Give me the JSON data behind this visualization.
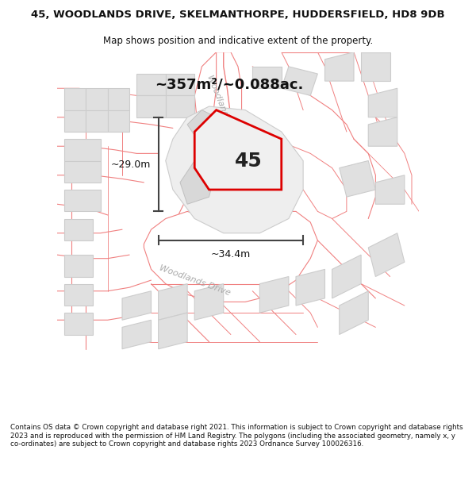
{
  "title": "45, WOODLANDS DRIVE, SKELMANTHORPE, HUDDERSFIELD, HD8 9DB",
  "subtitle": "Map shows position and indicative extent of the property.",
  "footer": "Contains OS data © Crown copyright and database right 2021. This information is subject to Crown copyright and database rights 2023 and is reproduced with the permission of HM Land Registry. The polygons (including the associated geometry, namely x, y co-ordinates) are subject to Crown copyright and database rights 2023 Ordnance Survey 100026316.",
  "area_label": "~357m²/~0.088ac.",
  "width_label": "~34.4m",
  "height_label": "~29.0m",
  "property_number": "45",
  "map_bg": "#ffffff",
  "road_line_color": "#f08080",
  "building_color": "#e0e0e0",
  "building_edge_color": "#cccccc",
  "plot_color": "#e8e8e8",
  "highlight_color": "#dd0000",
  "arrow_color": "#444444",
  "text_color": "#111111",
  "road_label_color": "#aaaaaa",
  "title_fontsize": 9.5,
  "subtitle_fontsize": 8.5,
  "footer_fontsize": 6.3,
  "area_fontsize": 13,
  "dim_fontsize": 9,
  "prop_num_fontsize": 18,
  "road_label_fontsize": 8
}
